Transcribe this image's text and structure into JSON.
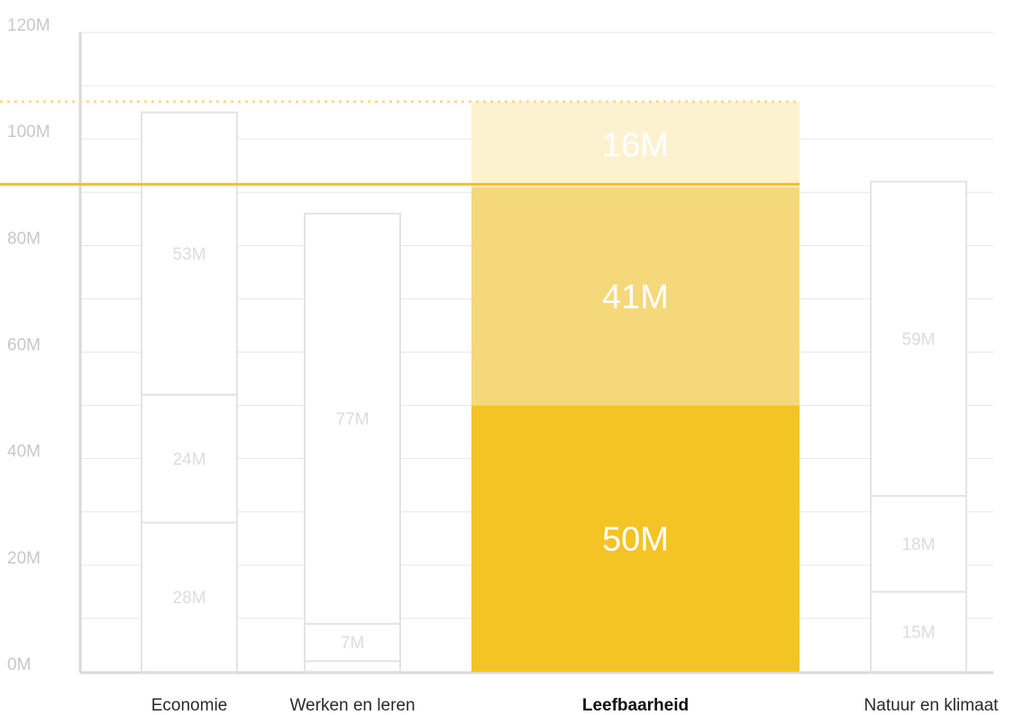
{
  "chart_data": {
    "type": "bar",
    "stacked": true,
    "ylim": [
      0,
      120
    ],
    "y_ticks": [
      {
        "value": 0,
        "label": "0M"
      },
      {
        "value": 20,
        "label": "20M"
      },
      {
        "value": 40,
        "label": "40M"
      },
      {
        "value": 60,
        "label": "60M"
      },
      {
        "value": 80,
        "label": "80M"
      },
      {
        "value": 100,
        "label": "100M"
      },
      {
        "value": 120,
        "label": "120M"
      }
    ],
    "grid": true,
    "reference_line": 91.5,
    "reference_dotted_line": 107,
    "highlighted_category": "Leefbaarheid",
    "categories": [
      {
        "label": "Economie",
        "segments": [
          {
            "value": 28,
            "label": "28M"
          },
          {
            "value": 24,
            "label": "24M"
          },
          {
            "value": 53,
            "label": "53M"
          }
        ]
      },
      {
        "label": "Werken en leren",
        "segments": [
          {
            "value": 2,
            "label": ""
          },
          {
            "value": 7,
            "label": "7M"
          },
          {
            "value": 77,
            "label": "77M"
          }
        ]
      },
      {
        "label": "Leefbaarheid",
        "segments": [
          {
            "value": 50,
            "label": "50M"
          },
          {
            "value": 41,
            "label": "41M"
          },
          {
            "value": 16,
            "label": "16M"
          }
        ]
      },
      {
        "label": "Natuur en klimaat",
        "segments": [
          {
            "value": 15,
            "label": "15M"
          },
          {
            "value": 18,
            "label": "18M"
          },
          {
            "value": 59,
            "label": "59M"
          }
        ]
      }
    ],
    "colors": {
      "highlight_segments": [
        "#f4c324",
        "#f5d87a",
        "#fdf2d0"
      ],
      "highlight_text": "#ffffff",
      "muted_stroke": "#e4e4e4",
      "muted_text": "#dcdcdc",
      "reference_line": "#f0c21c",
      "reference_dotted": "#f7dc8e",
      "grid": "#e6e6e6",
      "axis": "#d8d8d8"
    }
  }
}
